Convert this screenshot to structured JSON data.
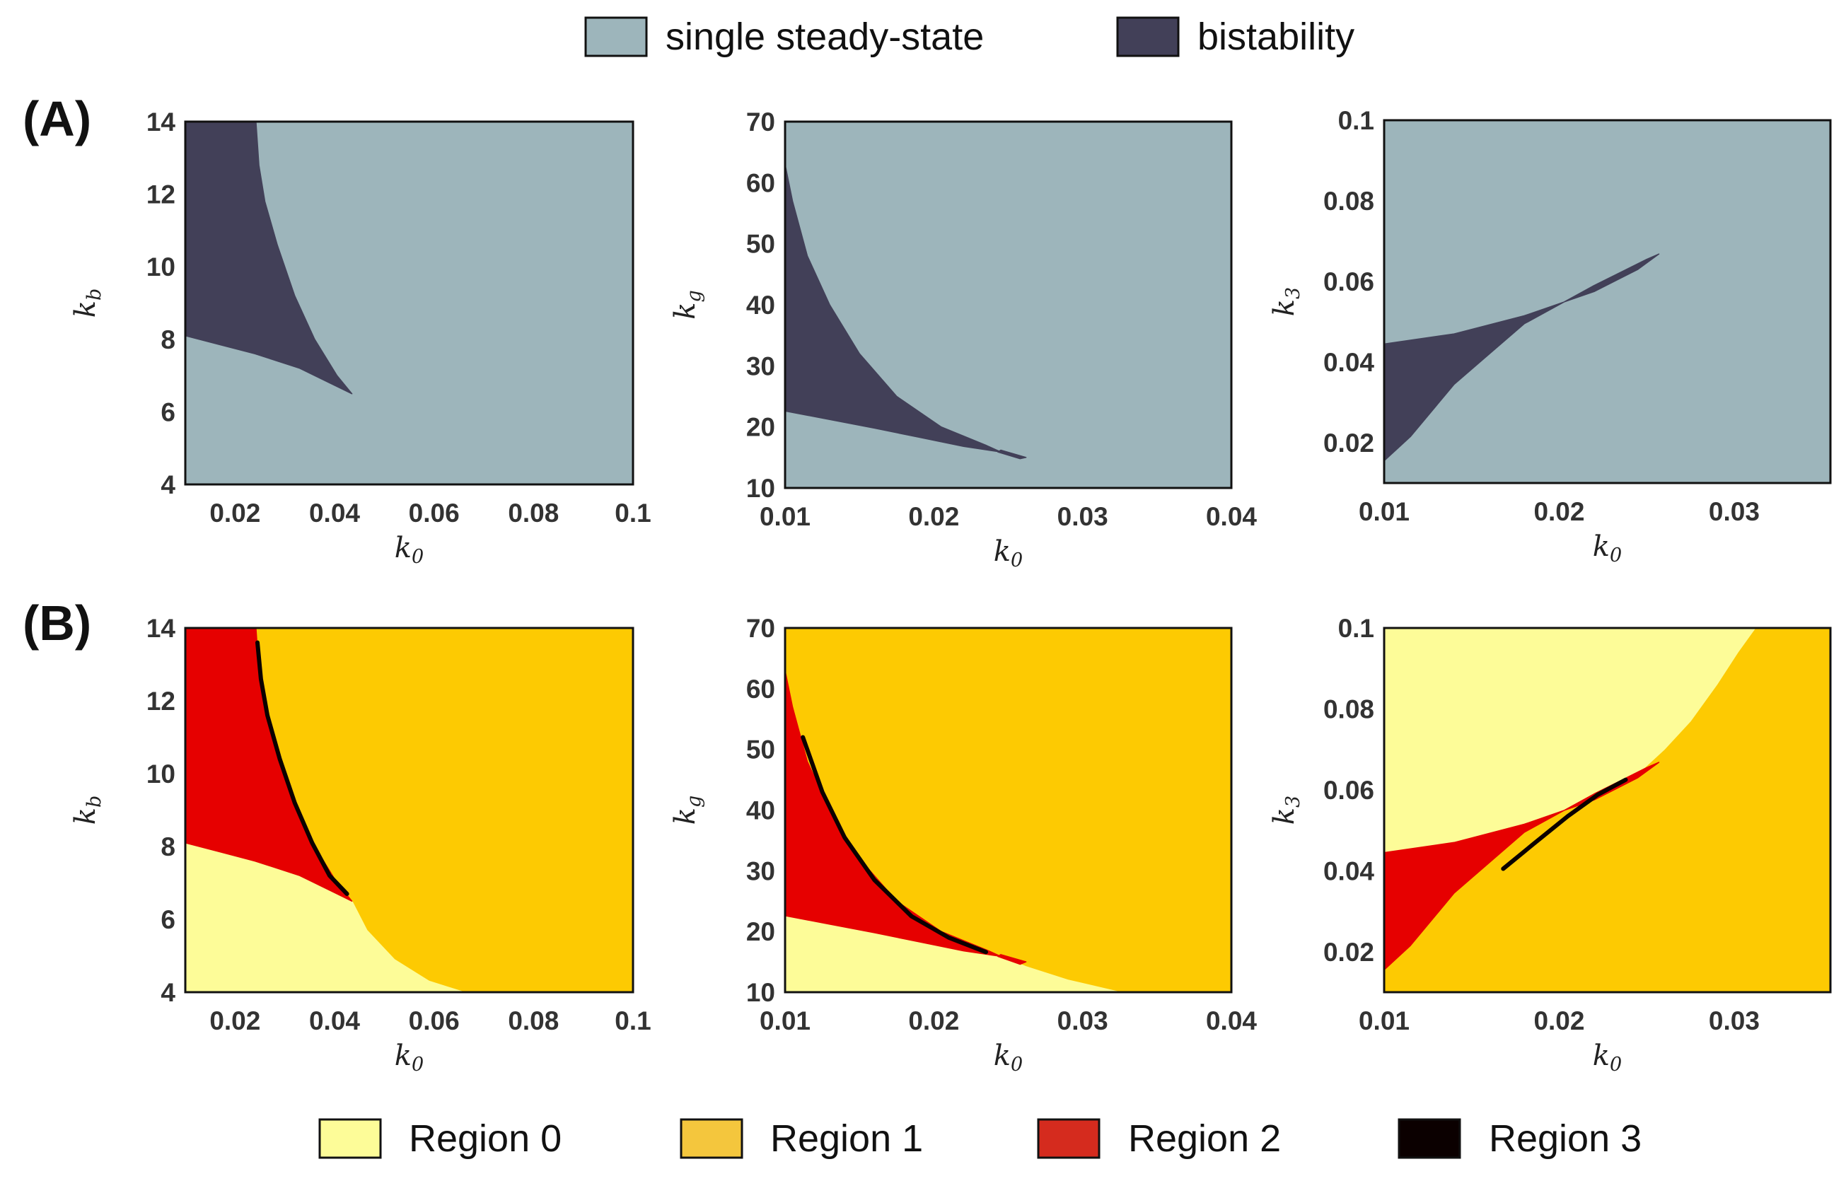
{
  "colors": {
    "single": "#9db5bb",
    "bistable": "#424058",
    "region0": "#fdfc98",
    "region1": "#fdca02",
    "region2": "#e60000",
    "region3": "#0b0000",
    "axis": "#111111"
  },
  "legend_top": [
    {
      "label": "single steady-state",
      "color": "#9db5bb"
    },
    {
      "label": "bistability",
      "color": "#424058"
    }
  ],
  "legend_bottom": [
    {
      "label": "Region 0",
      "color": "#fdfc98"
    },
    {
      "label": "Region 1",
      "color": "#f4c63d"
    },
    {
      "label": "Region 2",
      "color": "#d52b1e"
    },
    {
      "label": "Region 3",
      "color": "#0b0000"
    }
  ],
  "row_labels": [
    "(A)",
    "(B)"
  ],
  "chart_data": [
    {
      "id": "A1",
      "row": "A",
      "type": "heatmap",
      "scheme": "bistability",
      "xlabel": "k0",
      "xlabel_base": "k",
      "xlabel_sub": "0",
      "ylabel": "kb",
      "ylabel_base": "k",
      "ylabel_sub": "b",
      "xlim": [
        0.01,
        0.1
      ],
      "ylim": [
        4,
        14
      ],
      "xticks": [
        0.02,
        0.04,
        0.06,
        0.08,
        0.1
      ],
      "xtick_labels": [
        "0.02",
        "0.04",
        "0.06",
        "0.08",
        "0.1"
      ],
      "yticks": [
        4,
        6,
        8,
        10,
        12,
        14
      ],
      "ytick_labels": [
        "4",
        "6",
        "8",
        "10",
        "12",
        "14"
      ],
      "regions": [
        {
          "name": "bistability",
          "polygon": [
            [
              0.01,
              14
            ],
            [
              0.0242,
              14
            ],
            [
              0.0248,
              12.8
            ],
            [
              0.026,
              11.8
            ],
            [
              0.0285,
              10.6
            ],
            [
              0.032,
              9.2
            ],
            [
              0.036,
              8
            ],
            [
              0.0405,
              7
            ],
            [
              0.0435,
              6.5
            ],
            [
              0.039,
              6.8
            ],
            [
              0.033,
              7.2
            ],
            [
              0.024,
              7.6
            ],
            [
              0.017,
              7.85
            ],
            [
              0.01,
              8.1
            ]
          ]
        }
      ]
    },
    {
      "id": "A2",
      "row": "A",
      "type": "heatmap",
      "scheme": "bistability",
      "xlabel": "k0",
      "xlabel_base": "k",
      "xlabel_sub": "0",
      "ylabel": "kg",
      "ylabel_base": "k",
      "ylabel_sub": "g",
      "xlim": [
        0.01,
        0.04
      ],
      "ylim": [
        10,
        70
      ],
      "xticks": [
        0.01,
        0.02,
        0.03,
        0.04
      ],
      "xtick_labels": [
        "0.01",
        "0.02",
        "0.03",
        "0.04"
      ],
      "yticks": [
        10,
        20,
        30,
        40,
        50,
        60,
        70
      ],
      "ytick_labels": [
        "10",
        "20",
        "30",
        "40",
        "50",
        "60",
        "70"
      ],
      "regions": [
        {
          "name": "bistability",
          "polygon": [
            [
              0.01,
              63
            ],
            [
              0.0105,
              57
            ],
            [
              0.0115,
              48
            ],
            [
              0.013,
              40
            ],
            [
              0.015,
              32
            ],
            [
              0.0175,
              25
            ],
            [
              0.0205,
              20
            ],
            [
              0.0235,
              17
            ],
            [
              0.0245,
              15.9
            ],
            [
              0.022,
              16.8
            ],
            [
              0.019,
              18.3
            ],
            [
              0.016,
              19.8
            ],
            [
              0.013,
              21.2
            ],
            [
              0.01,
              22.6
            ]
          ]
        },
        {
          "name": "bistability",
          "polygon": [
            [
              0.0245,
              16.2
            ],
            [
              0.0262,
              15
            ],
            [
              0.0258,
              14.8
            ],
            [
              0.0243,
              15.9
            ]
          ]
        }
      ]
    },
    {
      "id": "A3",
      "row": "A",
      "type": "heatmap",
      "scheme": "bistability",
      "xlabel": "k0",
      "xlabel_base": "k",
      "xlabel_sub": "0",
      "ylabel": "k3",
      "ylabel_base": "k",
      "ylabel_sub": "3",
      "xlim": [
        0.01,
        0.0355
      ],
      "ylim": [
        0.01,
        0.1
      ],
      "xticks": [
        0.01,
        0.02,
        0.03
      ],
      "xtick_labels": [
        "0.01",
        "0.02",
        "0.03"
      ],
      "yticks": [
        0.02,
        0.04,
        0.06,
        0.08,
        0.1
      ],
      "ytick_labels": [
        "0.02",
        "0.04",
        "0.06",
        "0.08",
        "0.1"
      ],
      "regions": [
        {
          "name": "bistability",
          "polygon": [
            [
              0.01,
              0.0445
            ],
            [
              0.014,
              0.047
            ],
            [
              0.018,
              0.0515
            ],
            [
              0.022,
              0.0575
            ],
            [
              0.0245,
              0.063
            ],
            [
              0.0257,
              0.0668
            ],
            [
              0.025,
              0.0655
            ],
            [
              0.022,
              0.059
            ],
            [
              0.018,
              0.0495
            ],
            [
              0.014,
              0.0345
            ],
            [
              0.0115,
              0.0215
            ],
            [
              0.01,
              0.0155
            ]
          ]
        }
      ]
    },
    {
      "id": "B1",
      "row": "B",
      "type": "heatmap",
      "scheme": "regions",
      "xlabel": "k0",
      "xlabel_base": "k",
      "xlabel_sub": "0",
      "ylabel": "kb",
      "ylabel_base": "k",
      "ylabel_sub": "b",
      "xlim": [
        0.01,
        0.1
      ],
      "ylim": [
        4,
        14
      ],
      "xticks": [
        0.02,
        0.04,
        0.06,
        0.08,
        0.1
      ],
      "xtick_labels": [
        "0.02",
        "0.04",
        "0.06",
        "0.08",
        "0.1"
      ],
      "yticks": [
        4,
        6,
        8,
        10,
        12,
        14
      ],
      "ytick_labels": [
        "4",
        "6",
        "8",
        "10",
        "12",
        "14"
      ],
      "regions": [
        {
          "name": "Region 0",
          "polygon": [
            [
              0.01,
              4
            ],
            [
              0.066,
              4
            ],
            [
              0.059,
              4.3
            ],
            [
              0.052,
              4.9
            ],
            [
              0.0465,
              5.7
            ],
            [
              0.0435,
              6.5
            ],
            [
              0.039,
              6.8
            ],
            [
              0.033,
              7.2
            ],
            [
              0.024,
              7.6
            ],
            [
              0.017,
              7.85
            ],
            [
              0.01,
              8.1
            ]
          ]
        },
        {
          "name": "Region 2",
          "polygon": [
            [
              0.01,
              14
            ],
            [
              0.0242,
              14
            ],
            [
              0.0248,
              12.8
            ],
            [
              0.026,
              11.8
            ],
            [
              0.0285,
              10.6
            ],
            [
              0.032,
              9.2
            ],
            [
              0.036,
              8
            ],
            [
              0.0405,
              7
            ],
            [
              0.0435,
              6.5
            ],
            [
              0.039,
              6.8
            ],
            [
              0.033,
              7.2
            ],
            [
              0.024,
              7.6
            ],
            [
              0.017,
              7.85
            ],
            [
              0.01,
              8.1
            ]
          ]
        }
      ],
      "curves": [
        {
          "name": "Region 3",
          "points": [
            [
              0.0245,
              13.6
            ],
            [
              0.0252,
              12.6
            ],
            [
              0.0265,
              11.6
            ],
            [
              0.029,
              10.4
            ],
            [
              0.032,
              9.2
            ],
            [
              0.0355,
              8.1
            ],
            [
              0.039,
              7.2
            ],
            [
              0.0425,
              6.7
            ]
          ]
        }
      ]
    },
    {
      "id": "B2",
      "row": "B",
      "type": "heatmap",
      "scheme": "regions",
      "xlabel": "k0",
      "xlabel_base": "k",
      "xlabel_sub": "0",
      "ylabel": "kg",
      "ylabel_base": "k",
      "ylabel_sub": "g",
      "xlim": [
        0.01,
        0.04
      ],
      "ylim": [
        10,
        70
      ],
      "xticks": [
        0.01,
        0.02,
        0.03,
        0.04
      ],
      "xtick_labels": [
        "0.01",
        "0.02",
        "0.03",
        "0.04"
      ],
      "yticks": [
        10,
        20,
        30,
        40,
        50,
        60,
        70
      ],
      "ytick_labels": [
        "10",
        "20",
        "30",
        "40",
        "50",
        "60",
        "70"
      ],
      "regions": [
        {
          "name": "Region 0",
          "polygon": [
            [
              0.01,
              10
            ],
            [
              0.0325,
              10
            ],
            [
              0.029,
              12
            ],
            [
              0.0262,
              14.2
            ],
            [
              0.0245,
              15.9
            ],
            [
              0.022,
              16.8
            ],
            [
              0.019,
              18.3
            ],
            [
              0.016,
              19.8
            ],
            [
              0.013,
              21.2
            ],
            [
              0.01,
              22.6
            ]
          ]
        },
        {
          "name": "Region 2",
          "polygon": [
            [
              0.01,
              63
            ],
            [
              0.0105,
              57
            ],
            [
              0.0115,
              48
            ],
            [
              0.013,
              40
            ],
            [
              0.015,
              32
            ],
            [
              0.0175,
              25
            ],
            [
              0.0205,
              20
            ],
            [
              0.0235,
              17
            ],
            [
              0.0245,
              15.9
            ],
            [
              0.022,
              16.8
            ],
            [
              0.019,
              18.3
            ],
            [
              0.016,
              19.8
            ],
            [
              0.013,
              21.2
            ],
            [
              0.01,
              22.6
            ]
          ]
        },
        {
          "name": "Region 2",
          "polygon": [
            [
              0.0245,
              16.2
            ],
            [
              0.0262,
              15
            ],
            [
              0.0258,
              14.6
            ],
            [
              0.0243,
              15.9
            ]
          ]
        }
      ],
      "curves": [
        {
          "name": "Region 3",
          "points": [
            [
              0.0112,
              52
            ],
            [
              0.0125,
              43
            ],
            [
              0.014,
              35.5
            ],
            [
              0.016,
              28.5
            ],
            [
              0.0185,
              22.5
            ],
            [
              0.021,
              19
            ],
            [
              0.0235,
              16.6
            ]
          ]
        }
      ]
    },
    {
      "id": "B3",
      "row": "B",
      "type": "heatmap",
      "scheme": "regions",
      "xlabel": "k0",
      "xlabel_base": "k",
      "xlabel_sub": "0",
      "ylabel": "k3",
      "ylabel_base": "k",
      "ylabel_sub": "3",
      "xlim": [
        0.01,
        0.0355
      ],
      "ylim": [
        0.01,
        0.1
      ],
      "xticks": [
        0.01,
        0.02,
        0.03
      ],
      "xtick_labels": [
        "0.01",
        "0.02",
        "0.03"
      ],
      "yticks": [
        0.02,
        0.04,
        0.06,
        0.08,
        0.1
      ],
      "ytick_labels": [
        "0.02",
        "0.04",
        "0.06",
        "0.08",
        "0.1"
      ],
      "regions": [
        {
          "name": "Region 0",
          "polygon": [
            [
              0.01,
              0.1
            ],
            [
              0.0312,
              0.1
            ],
            [
              0.0302,
              0.094
            ],
            [
              0.029,
              0.086
            ],
            [
              0.0275,
              0.077
            ],
            [
              0.026,
              0.07
            ],
            [
              0.0245,
              0.064
            ],
            [
              0.022,
              0.0575
            ],
            [
              0.018,
              0.0515
            ],
            [
              0.014,
              0.047
            ],
            [
              0.01,
              0.0445
            ]
          ]
        },
        {
          "name": "Region 2",
          "polygon": [
            [
              0.01,
              0.0445
            ],
            [
              0.014,
              0.047
            ],
            [
              0.018,
              0.0515
            ],
            [
              0.022,
              0.0575
            ],
            [
              0.0245,
              0.063
            ],
            [
              0.0257,
              0.0668
            ],
            [
              0.025,
              0.0655
            ],
            [
              0.022,
              0.059
            ],
            [
              0.018,
              0.0495
            ],
            [
              0.014,
              0.0345
            ],
            [
              0.0115,
              0.0215
            ],
            [
              0.01,
              0.0155
            ]
          ]
        }
      ],
      "curves": [
        {
          "name": "Region 3",
          "points": [
            [
              0.0168,
              0.0405
            ],
            [
              0.0185,
              0.0465
            ],
            [
              0.0205,
              0.0535
            ],
            [
              0.0222,
              0.0588
            ],
            [
              0.0238,
              0.0625
            ]
          ]
        }
      ]
    }
  ]
}
